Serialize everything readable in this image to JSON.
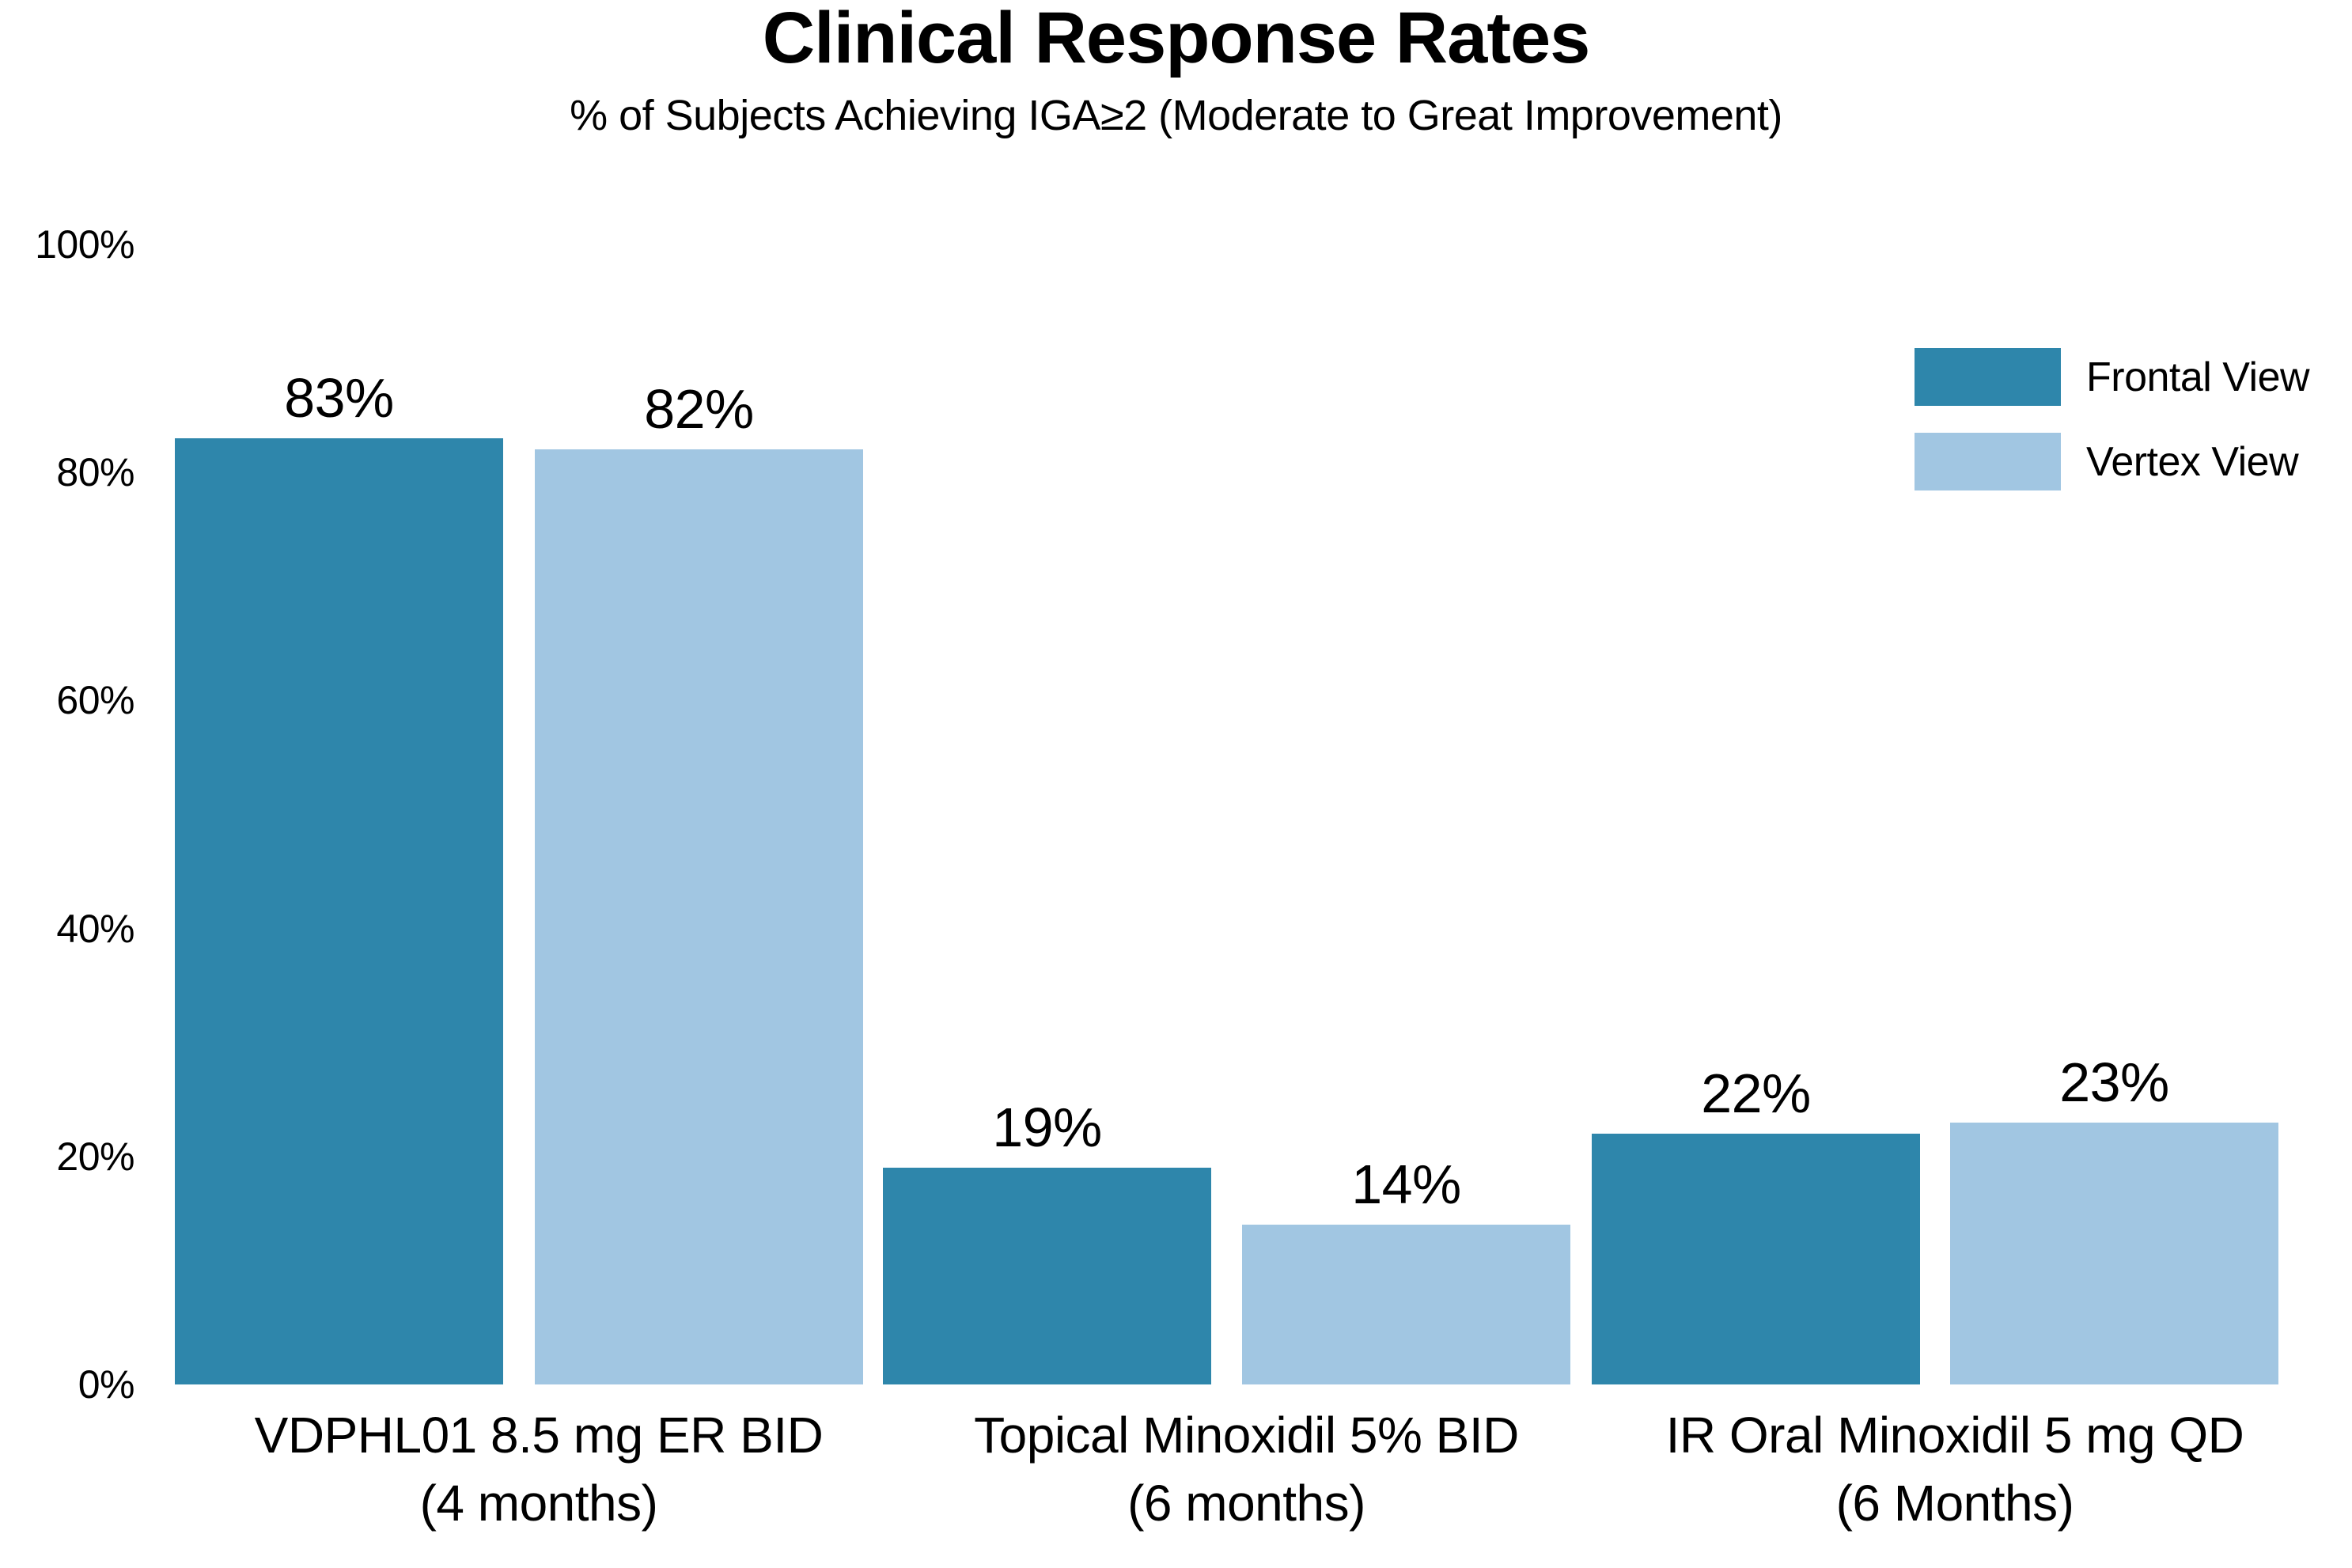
{
  "title": "Clinical Response Rates",
  "subtitle": "% of Subjects Achieving IGA≥2 (Moderate to Great Improvement)",
  "chart_data": {
    "type": "bar",
    "categories": [
      {
        "line1": "VDPHL01 8.5 mg ER BID",
        "line2": "(4 months)"
      },
      {
        "line1": "Topical Minoxidil 5% BID",
        "line2": "(6 months)"
      },
      {
        "line1": "IR Oral Minoxidil 5 mg QD",
        "line2": "(6 Months)"
      }
    ],
    "series": [
      {
        "name": "Frontal View",
        "color": "#2E86AB",
        "values": [
          83,
          19,
          22
        ]
      },
      {
        "name": "Vertex View",
        "color": "#A1C6E2",
        "values": [
          82,
          14,
          23
        ]
      }
    ],
    "value_labels": [
      [
        "83%",
        "82%"
      ],
      [
        "19%",
        "14%"
      ],
      [
        "22%",
        "23%"
      ]
    ],
    "y_ticks": [
      "0%",
      "20%",
      "40%",
      "60%",
      "80%",
      "100%"
    ],
    "y_tick_values": [
      0,
      20,
      40,
      60,
      80,
      100
    ],
    "ylim": [
      0,
      100
    ],
    "grid": false,
    "axis_lines": false,
    "legend_position": "upper-right",
    "background_color": "#ffffff",
    "text_color": "#000000"
  }
}
